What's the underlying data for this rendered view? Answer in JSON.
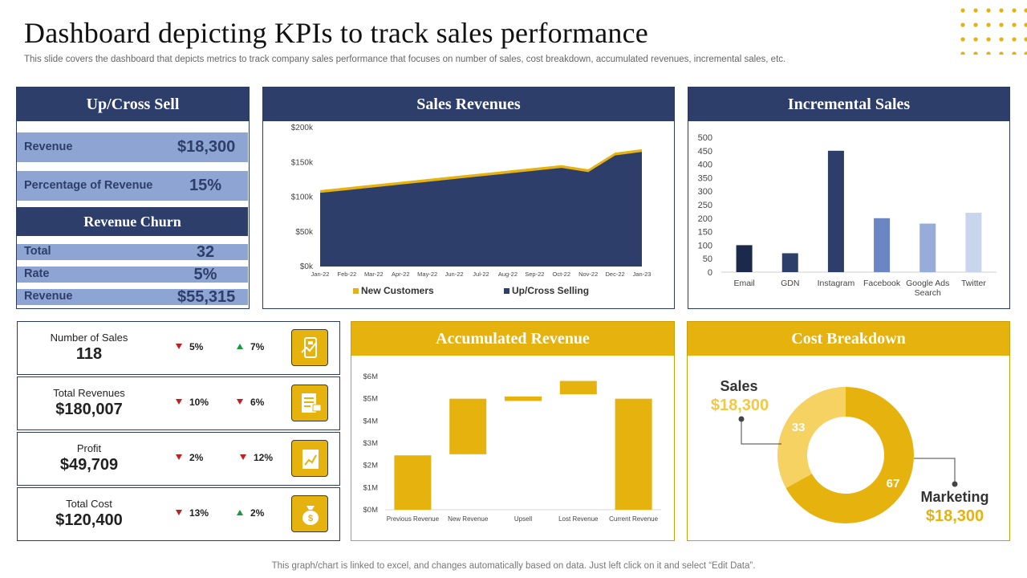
{
  "header": {
    "title": "Dashboard depicting KPIs to track sales performance",
    "subtitle": "This slide covers the dashboard that depicts metrics to track company sales performance that focuses on number of sales, cost breakdown, accumulated revenues, incremental sales, etc.",
    "footer": "This graph/chart is linked to excel,  and changes automatically based on data. Just left click on it and select “Edit Data”."
  },
  "colors": {
    "navy": "#2d3e6b",
    "gold": "#e6b20e",
    "light_blue": "#8ea4d2",
    "down": "#c0201f",
    "up": "#1a9a3f"
  },
  "up_cross_sell": {
    "title": "Up/Cross Sell",
    "revenue_label": "Revenue",
    "revenue_value": "$18,300",
    "pct_label": "Percentage of Revenue",
    "pct_value": "15%"
  },
  "revenue_churn": {
    "title": "Revenue Churn",
    "rows": [
      {
        "label": "Total",
        "value": "32"
      },
      {
        "label": "Rate",
        "value": "5%"
      },
      {
        "label": "Revenue",
        "value": "$55,315"
      }
    ]
  },
  "kpis": [
    {
      "name": "Number of Sales",
      "value": "118",
      "change1": "5%",
      "dir1": "down",
      "change2": "7%",
      "dir2": "up",
      "icon": "sales-hand-icon"
    },
    {
      "name": "Total Revenues",
      "value": "$180,007",
      "change1": "10%",
      "dir1": "down",
      "change2": "6%",
      "dir2": "down",
      "icon": "revenue-document-icon"
    },
    {
      "name": "Profit",
      "value": "$49,709",
      "change1": "2%",
      "dir1": "down",
      "change2": "12%",
      "dir2": "down",
      "icon": "profit-chart-icon"
    },
    {
      "name": "Total Cost",
      "value": "$120,400",
      "change1": "13%",
      "dir1": "down",
      "change2": "2%",
      "dir2": "up",
      "icon": "money-bag-icon"
    }
  ],
  "chart_data": [
    {
      "id": "sales_revenues",
      "type": "area",
      "title": "Sales Revenues",
      "categories": [
        "Jan-22",
        "Feb-22",
        "Mar-22",
        "Apr-22",
        "May-22",
        "Jun-22",
        "Jul-22",
        "Aug-22",
        "Sep-22",
        "Oct-22",
        "Nov-22",
        "Dec-22",
        "Jan-23"
      ],
      "series": [
        {
          "name": "New Customers",
          "color": "#e6b20e",
          "values": [
            110000,
            114000,
            118000,
            122000,
            126000,
            130000,
            134000,
            138000,
            142000,
            146000,
            140000,
            164000,
            169000
          ]
        },
        {
          "name": "Up/Cross Selling",
          "color": "#2d3e6b",
          "values": [
            106000,
            110000,
            114000,
            118000,
            122000,
            126000,
            130000,
            134000,
            138000,
            142000,
            136000,
            160000,
            165000
          ]
        }
      ],
      "ylim": [
        0,
        200000
      ],
      "yticks": [
        "$0k",
        "$50k",
        "$100k",
        "$150k",
        "$200k"
      ],
      "legend": "bottom"
    },
    {
      "id": "incremental_sales",
      "type": "bar",
      "title": "Incremental Sales",
      "categories": [
        "Email",
        "GDN",
        "Instagram",
        "Facebook",
        "Google Ads Search",
        "Twitter"
      ],
      "values": [
        100,
        70,
        450,
        200,
        180,
        220
      ],
      "colors": [
        "#1b2a4a",
        "#2d3e6b",
        "#2d3e6b",
        "#6b86c4",
        "#97acd9",
        "#c9d5ec"
      ],
      "ylim": [
        0,
        500
      ],
      "yticks": [
        "0",
        "50",
        "100",
        "150",
        "200",
        "250",
        "300",
        "350",
        "400",
        "450",
        "500"
      ]
    },
    {
      "id": "accumulated_revenue",
      "type": "bar",
      "subtype": "waterfall",
      "title": "Accumulated Revenue",
      "categories": [
        "Previous Revenue",
        "New Revenue",
        "Upsell",
        "Lost Revenue",
        "Current Revenue"
      ],
      "ranges": [
        [
          0,
          2.45
        ],
        [
          2.5,
          5.0
        ],
        [
          4.9,
          5.1
        ],
        [
          5.2,
          5.8
        ],
        [
          0,
          5.0
        ]
      ],
      "unit": "$M",
      "color": "#e6b20e",
      "ylim": [
        0,
        6
      ],
      "yticks": [
        "$0M",
        "$1M",
        "$2M",
        "$3M",
        "$4M",
        "$5M",
        "$6M"
      ]
    },
    {
      "id": "cost_breakdown",
      "type": "pie",
      "subtype": "donut",
      "title": "Cost Breakdown",
      "slices": [
        {
          "label": "Marketing",
          "value": 67,
          "amount": "$18,300",
          "color": "#e6b20e"
        },
        {
          "label": "Sales",
          "value": 33,
          "amount": "$18,300",
          "color": "#f6d263"
        }
      ]
    }
  ]
}
